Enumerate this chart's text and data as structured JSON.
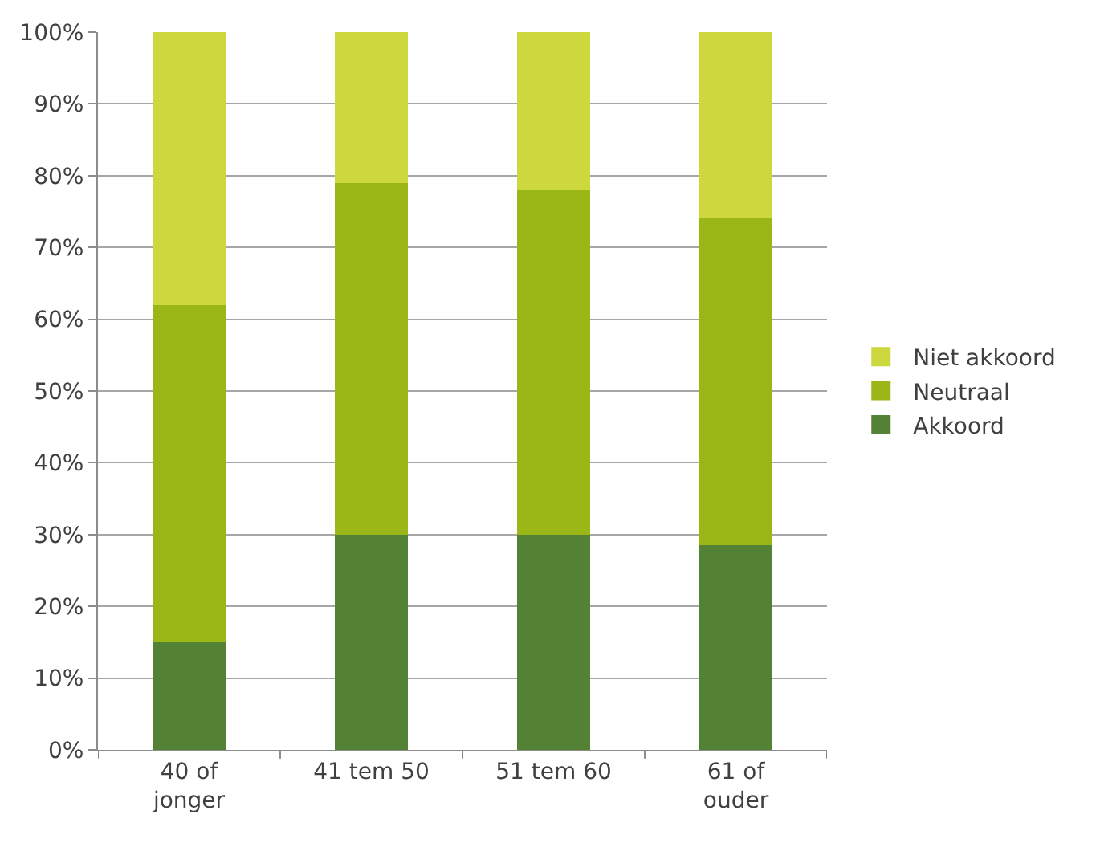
{
  "chart_data": {
    "type": "bar",
    "stacked": true,
    "categories": [
      "40 of\njonger",
      "41 tem 50",
      "51 tem 60",
      "61 of\nouder"
    ],
    "series": [
      {
        "name": "Akkoord",
        "color": "#548235",
        "values": [
          15,
          30,
          30,
          28.5
        ]
      },
      {
        "name": "Neutraal",
        "color": "#9bb617",
        "values": [
          47,
          49,
          48,
          45.5
        ]
      },
      {
        "name": "Niet akkoord",
        "color": "#cdd73e",
        "values": [
          38,
          21,
          22,
          26
        ]
      }
    ],
    "ylim": [
      0,
      100
    ],
    "yticks": [
      {
        "value": 0,
        "label": "0%"
      },
      {
        "value": 10,
        "label": "10%"
      },
      {
        "value": 20,
        "label": "20%"
      },
      {
        "value": 30,
        "label": "30%"
      },
      {
        "value": 40,
        "label": "40%"
      },
      {
        "value": 50,
        "label": "50%"
      },
      {
        "value": 60,
        "label": "60%"
      },
      {
        "value": 70,
        "label": "70%"
      },
      {
        "value": 80,
        "label": "80%"
      },
      {
        "value": 90,
        "label": "90%"
      },
      {
        "value": 100,
        "label": "100%"
      }
    ],
    "grid": "y",
    "legend": "right"
  }
}
